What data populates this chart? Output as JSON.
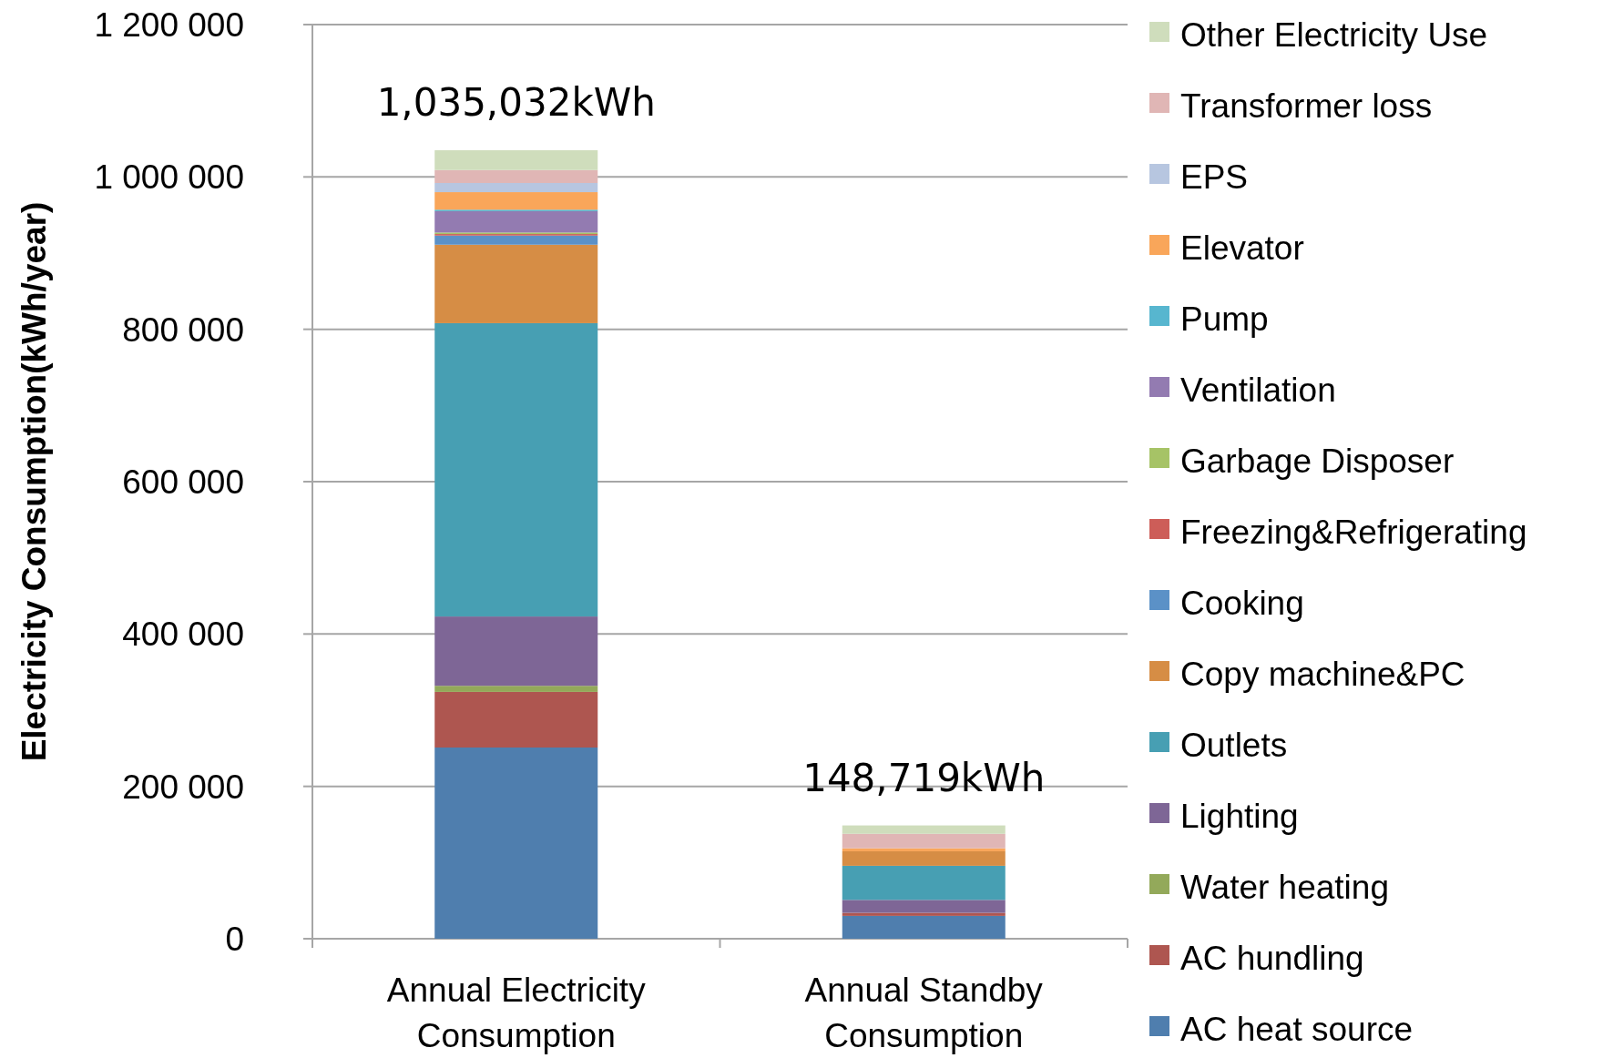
{
  "chart_data": {
    "type": "bar",
    "stacked": true,
    "ylabel": "Electricity Consumption(kWh/year)",
    "categories": [
      "Annual Electricity Consumption",
      "Annual Standby Consumption"
    ],
    "series": [
      {
        "name": "AC heat source",
        "color": "#4f7eae",
        "values": [
          251000,
          30000
        ]
      },
      {
        "name": "AC hundling",
        "color": "#ae5650",
        "values": [
          73000,
          4000
        ]
      },
      {
        "name": "Water heating",
        "color": "#93a95a",
        "values": [
          8000,
          0
        ]
      },
      {
        "name": "Lighting",
        "color": "#7e6696",
        "values": [
          91000,
          17000
        ]
      },
      {
        "name": "Outlets",
        "color": "#479fb3",
        "values": [
          385032,
          44719
        ]
      },
      {
        "name": "Copy machine&PC",
        "color": "#d68d45",
        "values": [
          103000,
          19000
        ]
      },
      {
        "name": "Cooking",
        "color": "#5b91c7",
        "values": [
          12000,
          0
        ]
      },
      {
        "name": "Freezing&Refrigerating",
        "color": "#cd5d58",
        "values": [
          2000,
          0
        ]
      },
      {
        "name": "Garbage Disposer",
        "color": "#a6c366",
        "values": [
          2000,
          0
        ]
      },
      {
        "name": "Ventilation",
        "color": "#937bb1",
        "values": [
          28000,
          0
        ]
      },
      {
        "name": "Pump",
        "color": "#57b6cf",
        "values": [
          2000,
          0
        ]
      },
      {
        "name": "Elevator",
        "color": "#f9a65a",
        "values": [
          23000,
          4000
        ]
      },
      {
        "name": "EPS",
        "color": "#b7c6e0",
        "values": [
          12000,
          0
        ]
      },
      {
        "name": "Transformer loss",
        "color": "#e0b6b5",
        "values": [
          17000,
          19000
        ]
      },
      {
        "name": "Other Electricity Use",
        "color": "#cfddbc",
        "values": [
          26000,
          11000
        ]
      }
    ],
    "totals": [
      "1,035,032kWh",
      "148,719kWh"
    ],
    "ylim": [
      0,
      1200000
    ],
    "yticks": [
      0,
      {
        "value": 200000,
        "label": "200 000"
      },
      {
        "value": 400000,
        "label": "400 000"
      },
      {
        "value": 600000,
        "label": "600 000"
      },
      {
        "value": 800000,
        "label": "800 000"
      },
      {
        "value": 1000000,
        "label": "1 000 000"
      },
      {
        "value": 1200000,
        "label": "1 200 000"
      }
    ],
    "grid": "y",
    "legend": "right"
  }
}
